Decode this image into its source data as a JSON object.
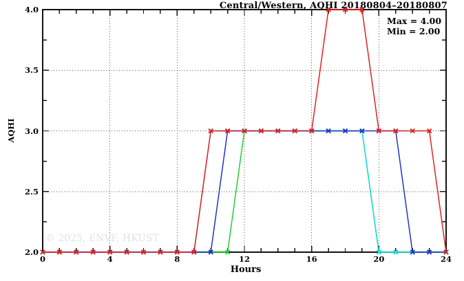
{
  "title": "Central/Western, AQHI 20180804–20180807",
  "stats": {
    "max_label": "Max = 4.00",
    "min_label": "Min = 2.00"
  },
  "watermark": "© 2025, ENVF, HKUST",
  "axis": {
    "x_tick_labels": [
      "0",
      "4",
      "8",
      "12",
      "16",
      "20",
      "24"
    ],
    "y_tick_labels": [
      "2.0",
      "2.5",
      "3.0",
      "3.5",
      "4.0"
    ]
  },
  "chart_data": {
    "type": "line",
    "title": "Central/Western, AQHI 20180804–20180807",
    "xlabel": "Hours",
    "ylabel": "AQHI",
    "xlim": [
      0,
      24
    ],
    "ylim": [
      2.0,
      4.0
    ],
    "x_major_tick_step": 4,
    "x_minor_tick_step": 1,
    "y_major_tick_step": 0.5,
    "y_minor_tick_step": 0.25,
    "grid": {
      "x_lines": [
        4,
        8,
        12,
        16,
        20
      ],
      "y_lines": [
        2.5,
        3.0,
        3.5
      ]
    },
    "max": 4.0,
    "min": 2.0,
    "marker": "x",
    "legend_position": "none",
    "x": [
      0,
      1,
      2,
      3,
      4,
      5,
      6,
      7,
      8,
      9,
      10,
      11,
      12,
      13,
      14,
      15,
      16,
      17,
      18,
      19,
      20,
      21,
      22,
      23,
      24
    ],
    "series": [
      {
        "name": "green",
        "color": "#22cc3a",
        "values": [
          2,
          2,
          2,
          2,
          2,
          2,
          2,
          2,
          2,
          2,
          2,
          2,
          3,
          3,
          3,
          3,
          3,
          3,
          3,
          3,
          2,
          2,
          2,
          2,
          2
        ]
      },
      {
        "name": "cyan",
        "color": "#17dede",
        "values": [
          2,
          2,
          2,
          2,
          2,
          2,
          2,
          2,
          2,
          2,
          3,
          3,
          3,
          3,
          3,
          3,
          3,
          3,
          3,
          3,
          2,
          2,
          2,
          2,
          2
        ]
      },
      {
        "name": "blue",
        "color": "#2230cc",
        "values": [
          2,
          2,
          2,
          2,
          2,
          2,
          2,
          2,
          2,
          2,
          2,
          3,
          3,
          3,
          3,
          3,
          3,
          3,
          3,
          3,
          3,
          3,
          2,
          2,
          2
        ]
      },
      {
        "name": "red",
        "color": "#e42020",
        "values": [
          2,
          2,
          2,
          2,
          2,
          2,
          2,
          2,
          2,
          2,
          3,
          3,
          3,
          3,
          3,
          3,
          3,
          4,
          4,
          4,
          3,
          3,
          3,
          3,
          2
        ]
      }
    ]
  }
}
